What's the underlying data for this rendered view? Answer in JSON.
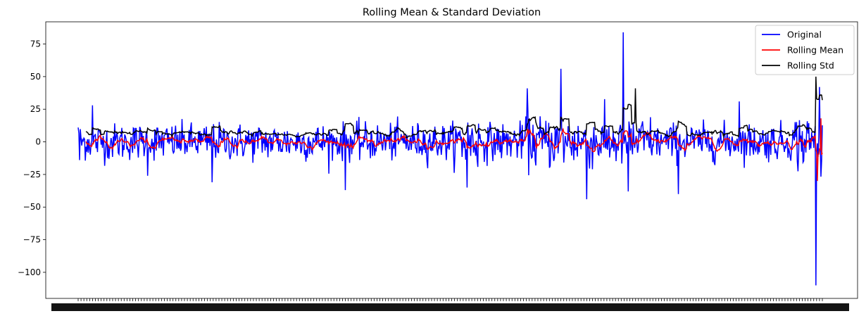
{
  "chart_data": {
    "type": "line",
    "title": "Rolling Mean & Standard Deviation",
    "xlabel": "",
    "ylabel": "",
    "ylim": [
      -120,
      92
    ],
    "yticks": [
      75,
      50,
      25,
      0,
      -25,
      -50,
      -75,
      -100
    ],
    "ytick_labels": [
      "75",
      "50",
      "25",
      "0",
      "−25",
      "−50",
      "−75",
      "−100"
    ],
    "x_count": 1040,
    "x_tick_labels_overlapping": true,
    "grid": false,
    "legend_position": "top-right",
    "series": [
      {
        "name": "Original",
        "color": "#0000ff"
      },
      {
        "name": "Rolling Mean",
        "color": "#ff0000"
      },
      {
        "name": "Rolling Std",
        "color": "#000000"
      }
    ],
    "notable_points": [
      {
        "series": "Original",
        "x": 0,
        "y": 11
      },
      {
        "series": "Original",
        "x": 2,
        "y": -14
      },
      {
        "series": "Original",
        "x": 20,
        "y": 28
      },
      {
        "series": "Original",
        "x": 97,
        "y": -26
      },
      {
        "series": "Original",
        "x": 187,
        "y": -31
      },
      {
        "series": "Original",
        "x": 373,
        "y": -37
      },
      {
        "series": "Original",
        "x": 543,
        "y": -35
      },
      {
        "series": "Original",
        "x": 627,
        "y": 41
      },
      {
        "series": "Original",
        "x": 674,
        "y": 56
      },
      {
        "series": "Original",
        "x": 710,
        "y": -44
      },
      {
        "series": "Original",
        "x": 761,
        "y": 84
      },
      {
        "series": "Original",
        "x": 768,
        "y": -38
      },
      {
        "series": "Original",
        "x": 838,
        "y": -40
      },
      {
        "series": "Original",
        "x": 923,
        "y": 31
      },
      {
        "series": "Original",
        "x": 1030,
        "y": -110
      },
      {
        "series": "Original",
        "x": 1035,
        "y": 42
      },
      {
        "series": "Rolling Mean",
        "x": 1032,
        "y": -30
      },
      {
        "series": "Rolling Mean",
        "x": 1037,
        "y": 18
      },
      {
        "series": "Rolling Std",
        "x": 778,
        "y": 41
      },
      {
        "series": "Rolling Std",
        "x": 1030,
        "y": 50
      },
      {
        "series": "Rolling Std",
        "x": 1039,
        "y": 32
      }
    ]
  }
}
